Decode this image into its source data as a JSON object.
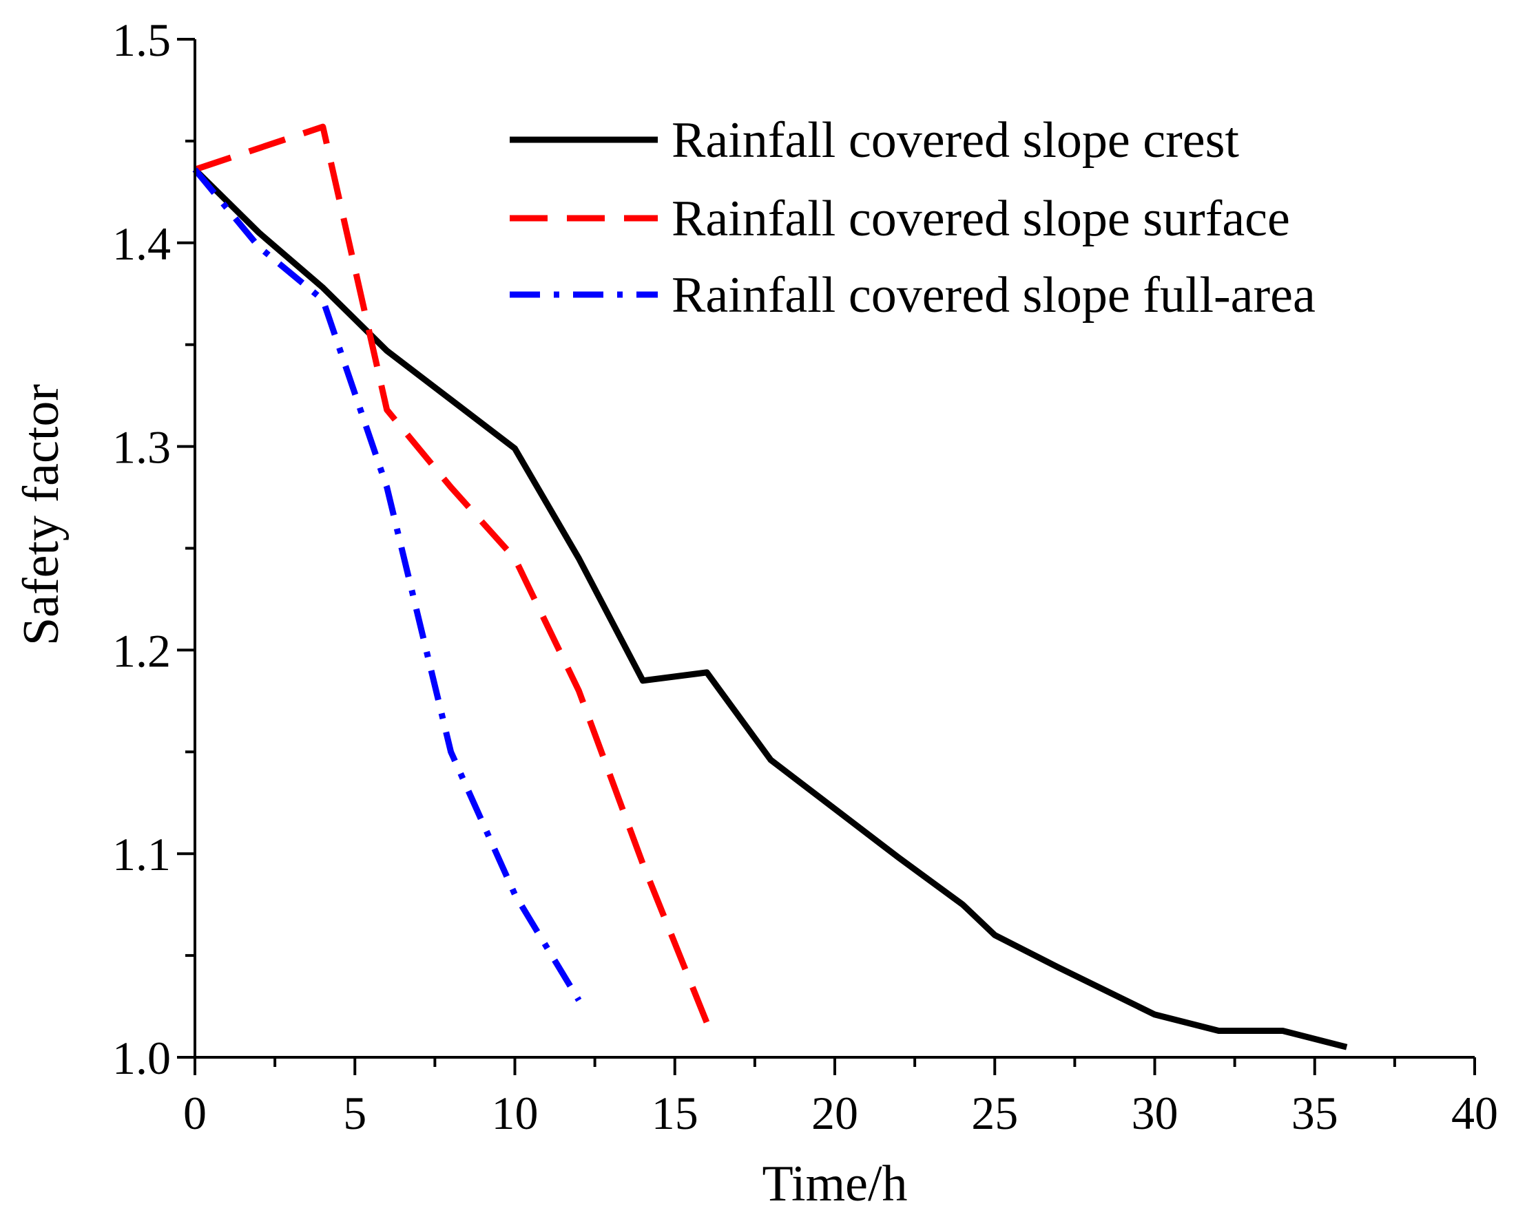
{
  "chart_data": {
    "type": "line",
    "title": "",
    "xlabel": "Time/h",
    "ylabel": "Safety factor",
    "xlim": [
      0,
      40
    ],
    "ylim": [
      1.0,
      1.5
    ],
    "xticks": [
      0,
      5,
      10,
      15,
      20,
      25,
      30,
      35,
      40
    ],
    "xtick_labels": [
      "0",
      "5",
      "10",
      "15",
      "20",
      "25",
      "30",
      "35",
      "40"
    ],
    "yticks": [
      1.0,
      1.1,
      1.2,
      1.3,
      1.4,
      1.5
    ],
    "ytick_labels": [
      "1.0",
      "1.1",
      "1.2",
      "1.3",
      "1.4",
      "1.5"
    ],
    "grid": false,
    "legend_position": "top-right",
    "series": [
      {
        "name": "Rainfall covered slope crest",
        "color": "#000000",
        "style": "solid",
        "x": [
          0,
          2,
          4,
          6,
          8,
          10,
          12,
          14,
          16,
          18,
          20,
          22,
          24,
          25,
          27,
          30,
          32,
          34,
          36
        ],
        "y": [
          1.436,
          1.405,
          1.378,
          1.347,
          1.323,
          1.299,
          1.245,
          1.185,
          1.189,
          1.146,
          1.122,
          1.098,
          1.075,
          1.06,
          1.044,
          1.021,
          1.013,
          1.013,
          1.005
        ]
      },
      {
        "name": "Rainfall covered slope surface",
        "color": "#ff0000",
        "style": "dashed",
        "x": [
          0,
          4,
          6,
          8,
          10,
          12,
          14,
          16
        ],
        "y": [
          1.436,
          1.457,
          1.318,
          1.28,
          1.245,
          1.18,
          1.095,
          1.017
        ]
      },
      {
        "name": "Rainfall covered slope full-area",
        "color": "#0000ff",
        "style": "dashdot",
        "x": [
          0,
          2,
          4,
          6,
          8,
          10,
          12
        ],
        "y": [
          1.436,
          1.398,
          1.372,
          1.28,
          1.15,
          1.08,
          1.028
        ]
      }
    ]
  }
}
